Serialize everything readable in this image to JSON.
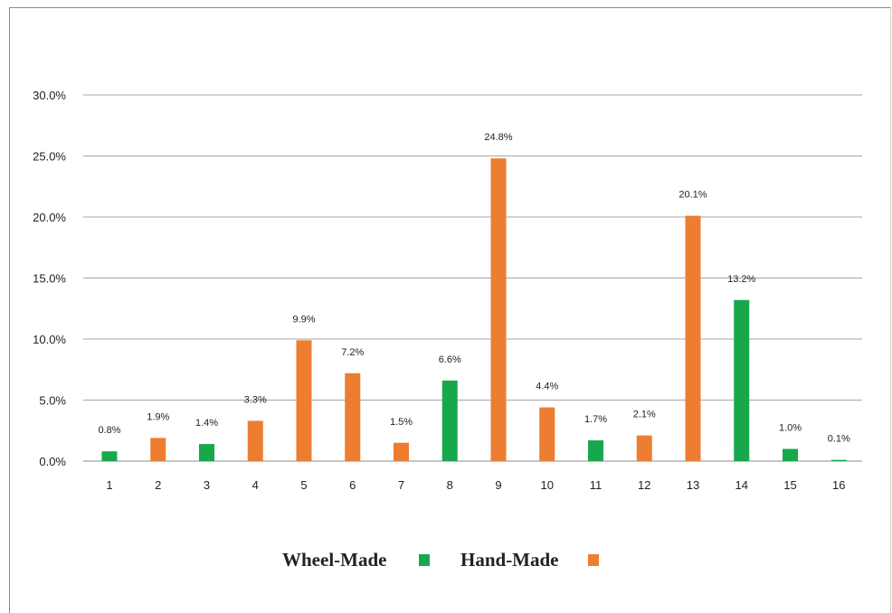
{
  "chart_data": {
    "type": "bar",
    "title": "",
    "xlabel": "",
    "ylabel": "",
    "ylim": [
      0,
      30
    ],
    "y_ticks": [
      "0.0%",
      "5.0%",
      "10.0%",
      "15.0%",
      "20.0%",
      "25.0%",
      "30.0%"
    ],
    "categories": [
      "1",
      "2",
      "3",
      "4",
      "5",
      "6",
      "7",
      "8",
      "9",
      "10",
      "11",
      "12",
      "13",
      "14",
      "15",
      "16"
    ],
    "grid": true,
    "legend_position": "bottom-center",
    "series": [
      {
        "name": "Wheel-Made",
        "color": "#17a84c",
        "values": [
          0.8,
          null,
          1.4,
          null,
          null,
          null,
          null,
          6.6,
          null,
          null,
          1.7,
          null,
          null,
          13.2,
          1.0,
          0.1
        ],
        "labels": [
          "0.8%",
          "",
          "1.4%",
          "",
          "",
          "",
          "",
          "6.6%",
          "",
          "",
          "1.7%",
          "",
          "",
          "13.2%",
          "1.0%",
          "0.1%"
        ]
      },
      {
        "name": "Hand-Made",
        "color": "#ed7d31",
        "values": [
          null,
          1.9,
          null,
          3.3,
          9.9,
          7.2,
          1.5,
          null,
          24.8,
          4.4,
          null,
          2.1,
          20.1,
          null,
          null,
          null
        ],
        "labels": [
          "",
          "1.9%",
          "",
          "3.3%",
          "9.9%",
          "7.2%",
          "1.5%",
          "",
          "24.8%",
          "4.4%",
          "",
          "2.1%",
          "20.1%",
          "",
          "",
          ""
        ]
      }
    ]
  }
}
